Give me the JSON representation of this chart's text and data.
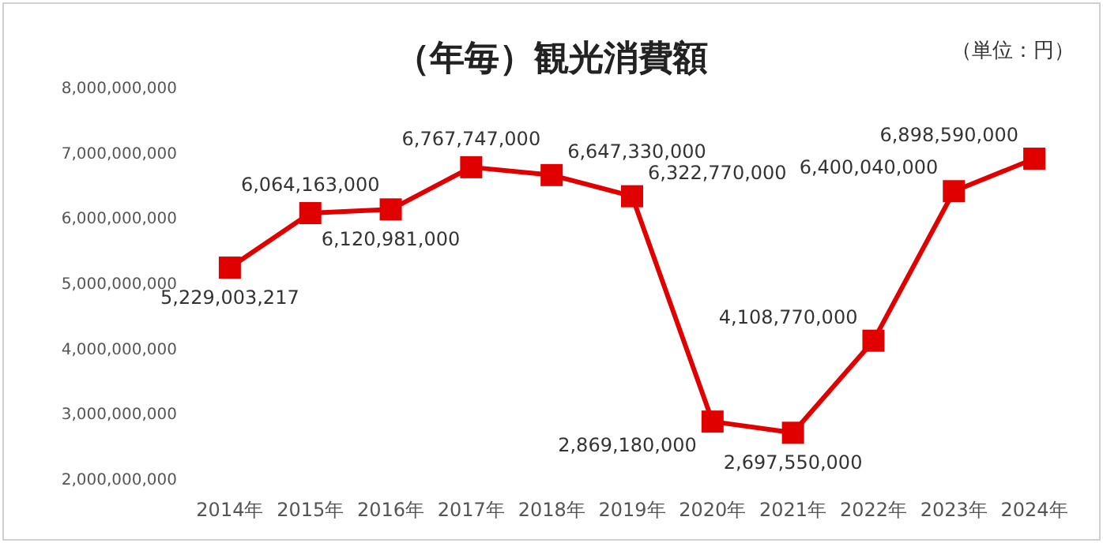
{
  "chart_data": {
    "type": "line",
    "title": "（年毎）観光消費額",
    "annotations": [
      "（単位：円）"
    ],
    "categories": [
      "2014年",
      "2015年",
      "2016年",
      "2017年",
      "2018年",
      "2019年",
      "2020年",
      "2021年",
      "2022年",
      "2023年",
      "2024年"
    ],
    "series": [
      {
        "color": "#e00000",
        "values": [
          5229003217,
          6064163000,
          6120981000,
          6767747000,
          6647330000,
          6322770000,
          2869180000,
          2697550000,
          4108770000,
          6400040000,
          6898590000
        ]
      }
    ],
    "value_labels": [
      "5,229,003,217",
      "6,064,163,000",
      "6,120,981,000",
      "6,767,747,000",
      "6,647,330,000",
      "6,322,770,000",
      "2,869,180,000",
      "2,697,550,000",
      "4,108,770,000",
      "6,400,040,000",
      "6,898,590,000"
    ],
    "ylim": [
      2000000000,
      8000000000
    ],
    "yticks": [
      {
        "value": 2000000000,
        "label": "2,000,000,000"
      },
      {
        "value": 3000000000,
        "label": "3,000,000,000"
      },
      {
        "value": 4000000000,
        "label": "4,000,000,000"
      },
      {
        "value": 5000000000,
        "label": "5,000,000,000"
      },
      {
        "value": 6000000000,
        "label": "6,000,000,000"
      },
      {
        "value": 7000000000,
        "label": "7,000,000,000"
      },
      {
        "value": 8000000000,
        "label": "8,000,000,000"
      }
    ],
    "grid": false,
    "marker": "square",
    "line_style": "solid"
  }
}
